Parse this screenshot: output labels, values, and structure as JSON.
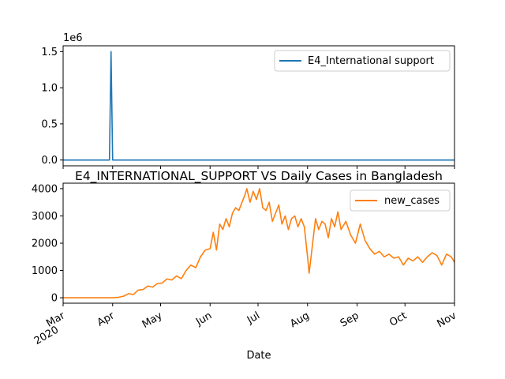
{
  "chart_data": [
    {
      "type": "line",
      "title": "",
      "xlabel": "",
      "ylabel": "",
      "scale_label": "1e6",
      "xlim": [
        "2020-03-01",
        "2020-11-01"
      ],
      "ylim": [
        -0.08,
        1.58
      ],
      "yticks": [
        {
          "value": 0.0,
          "label": "0.0"
        },
        {
          "value": 0.5,
          "label": "0.5"
        },
        {
          "value": 1.0,
          "label": "1.0"
        },
        {
          "value": 1.5,
          "label": "1.5"
        }
      ],
      "grid": false,
      "legend_position": "top-right",
      "series": [
        {
          "name": "E4_International support",
          "color": "#1f77b4",
          "points": [
            [
              "2020-03-01",
              0
            ],
            [
              "2020-03-30",
              0
            ],
            [
              "2020-03-31",
              1.5
            ],
            [
              "2020-04-01",
              0
            ],
            [
              "2020-11-01",
              0
            ]
          ]
        }
      ]
    },
    {
      "type": "line",
      "title": "E4_INTERNATIONAL_SUPPORT VS Daily Cases in Bangladesh",
      "xlabel": "Date",
      "ylabel": "",
      "xlim": [
        "2020-03-01",
        "2020-11-01"
      ],
      "ylim": [
        -200,
        4200
      ],
      "yticks": [
        {
          "value": 0,
          "label": "0"
        },
        {
          "value": 1000,
          "label": "1000"
        },
        {
          "value": 2000,
          "label": "2000"
        },
        {
          "value": 3000,
          "label": "3000"
        },
        {
          "value": 4000,
          "label": "4000"
        }
      ],
      "xticks": [
        {
          "date": "2020-03-01",
          "label": "Mar",
          "sublabel": "2020"
        },
        {
          "date": "2020-04-01",
          "label": "Apr"
        },
        {
          "date": "2020-05-01",
          "label": "May"
        },
        {
          "date": "2020-06-01",
          "label": "Jun"
        },
        {
          "date": "2020-07-01",
          "label": "Jul"
        },
        {
          "date": "2020-08-01",
          "label": "Aug"
        },
        {
          "date": "2020-09-01",
          "label": "Sep"
        },
        {
          "date": "2020-10-01",
          "label": "Oct"
        },
        {
          "date": "2020-11-01",
          "label": "Nov"
        }
      ],
      "grid": false,
      "legend_position": "top-right",
      "series": [
        {
          "name": "new_cases",
          "color": "#ff7f0e",
          "points": [
            [
              "2020-03-01",
              0
            ],
            [
              "2020-04-01",
              2
            ],
            [
              "2020-04-05",
              20
            ],
            [
              "2020-04-08",
              60
            ],
            [
              "2020-04-11",
              150
            ],
            [
              "2020-04-14",
              120
            ],
            [
              "2020-04-17",
              280
            ],
            [
              "2020-04-20",
              300
            ],
            [
              "2020-04-23",
              430
            ],
            [
              "2020-04-26",
              390
            ],
            [
              "2020-04-29",
              520
            ],
            [
              "2020-05-02",
              540
            ],
            [
              "2020-05-05",
              690
            ],
            [
              "2020-05-08",
              650
            ],
            [
              "2020-05-11",
              800
            ],
            [
              "2020-05-14",
              700
            ],
            [
              "2020-05-17",
              1000
            ],
            [
              "2020-05-20",
              1200
            ],
            [
              "2020-05-23",
              1100
            ],
            [
              "2020-05-26",
              1500
            ],
            [
              "2020-05-29",
              1750
            ],
            [
              "2020-06-01",
              1800
            ],
            [
              "2020-06-03",
              2400
            ],
            [
              "2020-06-05",
              1750
            ],
            [
              "2020-06-07",
              2700
            ],
            [
              "2020-06-09",
              2500
            ],
            [
              "2020-06-11",
              2900
            ],
            [
              "2020-06-13",
              2600
            ],
            [
              "2020-06-15",
              3100
            ],
            [
              "2020-06-17",
              3300
            ],
            [
              "2020-06-19",
              3200
            ],
            [
              "2020-06-21",
              3500
            ],
            [
              "2020-06-23",
              3800
            ],
            [
              "2020-06-24",
              4000
            ],
            [
              "2020-06-26",
              3500
            ],
            [
              "2020-06-28",
              3900
            ],
            [
              "2020-06-30",
              3600
            ],
            [
              "2020-07-02",
              4000
            ],
            [
              "2020-07-04",
              3300
            ],
            [
              "2020-07-06",
              3200
            ],
            [
              "2020-07-08",
              3500
            ],
            [
              "2020-07-10",
              2800
            ],
            [
              "2020-07-12",
              3100
            ],
            [
              "2020-07-14",
              3400
            ],
            [
              "2020-07-16",
              2700
            ],
            [
              "2020-07-18",
              3000
            ],
            [
              "2020-07-20",
              2500
            ],
            [
              "2020-07-22",
              2900
            ],
            [
              "2020-07-24",
              3000
            ],
            [
              "2020-07-26",
              2600
            ],
            [
              "2020-07-28",
              2900
            ],
            [
              "2020-07-30",
              2600
            ],
            [
              "2020-08-01",
              1500
            ],
            [
              "2020-08-02",
              900
            ],
            [
              "2020-08-04",
              1900
            ],
            [
              "2020-08-06",
              2900
            ],
            [
              "2020-08-08",
              2500
            ],
            [
              "2020-08-10",
              2800
            ],
            [
              "2020-08-12",
              2700
            ],
            [
              "2020-08-14",
              2200
            ],
            [
              "2020-08-16",
              2900
            ],
            [
              "2020-08-18",
              2600
            ],
            [
              "2020-08-20",
              3150
            ],
            [
              "2020-08-22",
              2500
            ],
            [
              "2020-08-25",
              2800
            ],
            [
              "2020-08-28",
              2300
            ],
            [
              "2020-08-31",
              2000
            ],
            [
              "2020-09-03",
              2700
            ],
            [
              "2020-09-06",
              2100
            ],
            [
              "2020-09-09",
              1800
            ],
            [
              "2020-09-12",
              1600
            ],
            [
              "2020-09-15",
              1700
            ],
            [
              "2020-09-18",
              1500
            ],
            [
              "2020-09-21",
              1600
            ],
            [
              "2020-09-24",
              1450
            ],
            [
              "2020-09-27",
              1500
            ],
            [
              "2020-09-30",
              1200
            ],
            [
              "2020-10-03",
              1450
            ],
            [
              "2020-10-06",
              1350
            ],
            [
              "2020-10-09",
              1500
            ],
            [
              "2020-10-12",
              1300
            ],
            [
              "2020-10-15",
              1500
            ],
            [
              "2020-10-18",
              1650
            ],
            [
              "2020-10-21",
              1550
            ],
            [
              "2020-10-24",
              1200
            ],
            [
              "2020-10-27",
              1600
            ],
            [
              "2020-10-30",
              1500
            ],
            [
              "2020-11-01",
              1300
            ]
          ]
        }
      ]
    }
  ]
}
